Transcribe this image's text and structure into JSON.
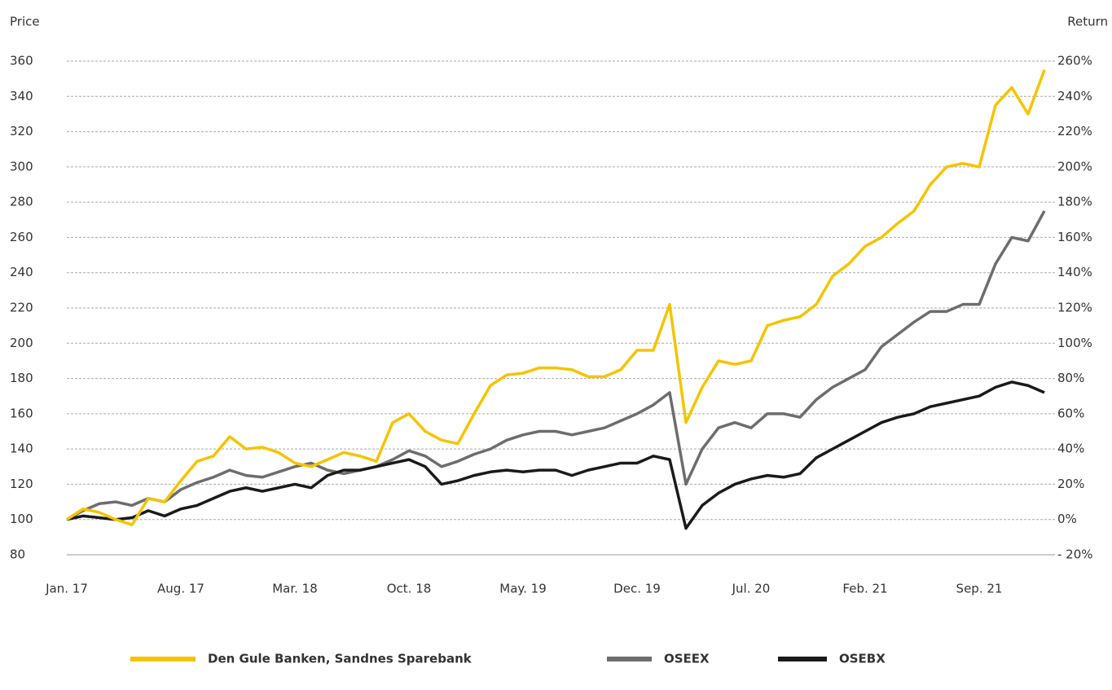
{
  "chart_data": {
    "type": "line",
    "ylabel": "Price",
    "y2label": "Return",
    "categories": [
      "Jan. 17",
      null,
      null,
      null,
      null,
      null,
      null,
      "Aug. 17",
      null,
      null,
      null,
      null,
      null,
      null,
      "Mar. 18",
      null,
      null,
      null,
      null,
      null,
      null,
      "Oct. 18",
      null,
      null,
      null,
      null,
      null,
      null,
      "May. 19",
      null,
      null,
      null,
      null,
      null,
      null,
      "Dec. 19",
      null,
      null,
      null,
      null,
      null,
      null,
      "Jul. 20",
      null,
      null,
      null,
      null,
      null,
      null,
      "Feb. 21",
      null,
      null,
      null,
      null,
      null,
      null,
      "Sep. 21",
      null,
      null,
      null,
      null
    ],
    "series": [
      {
        "name": "Den Gule Banken, Sandnes Sparebank",
        "color": "#f5c400",
        "values": [
          100,
          106,
          104,
          100,
          97,
          112,
          110,
          122,
          133,
          136,
          147,
          140,
          141,
          138,
          132,
          130,
          134,
          138,
          136,
          133,
          155,
          160,
          150,
          145,
          143,
          160,
          176,
          182,
          183,
          186,
          186,
          185,
          181,
          181,
          185,
          196,
          196,
          222,
          155,
          175,
          190,
          188,
          190,
          210,
          213,
          215,
          222,
          238,
          245,
          255,
          260,
          268,
          275,
          290,
          300,
          302,
          300,
          335,
          345,
          330,
          355
        ]
      },
      {
        "name": "OSEEX",
        "color": "#6d6d6f",
        "values": [
          100,
          105,
          109,
          110,
          108,
          112,
          110,
          117,
          121,
          124,
          128,
          125,
          124,
          127,
          130,
          132,
          128,
          126,
          128,
          130,
          134,
          139,
          136,
          130,
          133,
          137,
          140,
          145,
          148,
          150,
          150,
          148,
          150,
          152,
          156,
          160,
          165,
          172,
          120,
          140,
          152,
          155,
          152,
          160,
          160,
          158,
          168,
          175,
          180,
          185,
          198,
          205,
          212,
          218,
          218,
          222,
          222,
          245,
          260,
          258,
          275
        ]
      },
      {
        "name": "OSEBX",
        "color": "#1a1a1a",
        "values": [
          100,
          102,
          101,
          100,
          101,
          105,
          102,
          106,
          108,
          112,
          116,
          118,
          116,
          118,
          120,
          118,
          125,
          128,
          128,
          130,
          132,
          134,
          130,
          120,
          122,
          125,
          127,
          128,
          127,
          128,
          128,
          125,
          128,
          130,
          132,
          132,
          136,
          134,
          95,
          108,
          115,
          120,
          123,
          125,
          124,
          126,
          135,
          140,
          145,
          150,
          155,
          158,
          160,
          164,
          166,
          168,
          170,
          175,
          178,
          176,
          172
        ]
      }
    ],
    "ylim": [
      80,
      360
    ],
    "yticks": [
      80,
      100,
      120,
      140,
      160,
      180,
      200,
      220,
      240,
      260,
      280,
      300,
      320,
      340,
      360
    ],
    "y2lim": [
      -20,
      260
    ],
    "y2ticks": [
      {
        "value": -20,
        "label": "- 20%"
      },
      {
        "value": 0,
        "label": "0%"
      },
      {
        "value": 20,
        "label": "20%"
      },
      {
        "value": 40,
        "label": "40%"
      },
      {
        "value": 60,
        "label": "60%"
      },
      {
        "value": 80,
        "label": "80%"
      },
      {
        "value": 100,
        "label": "100%"
      },
      {
        "value": 120,
        "label": "120%"
      },
      {
        "value": 140,
        "label": "140%"
      },
      {
        "value": 160,
        "label": "160%"
      },
      {
        "value": 180,
        "label": "180%"
      },
      {
        "value": 200,
        "label": "200%"
      },
      {
        "value": 220,
        "label": "220%"
      },
      {
        "value": 240,
        "label": "240%"
      },
      {
        "value": 260,
        "label": "260%"
      }
    ],
    "grid": true
  }
}
